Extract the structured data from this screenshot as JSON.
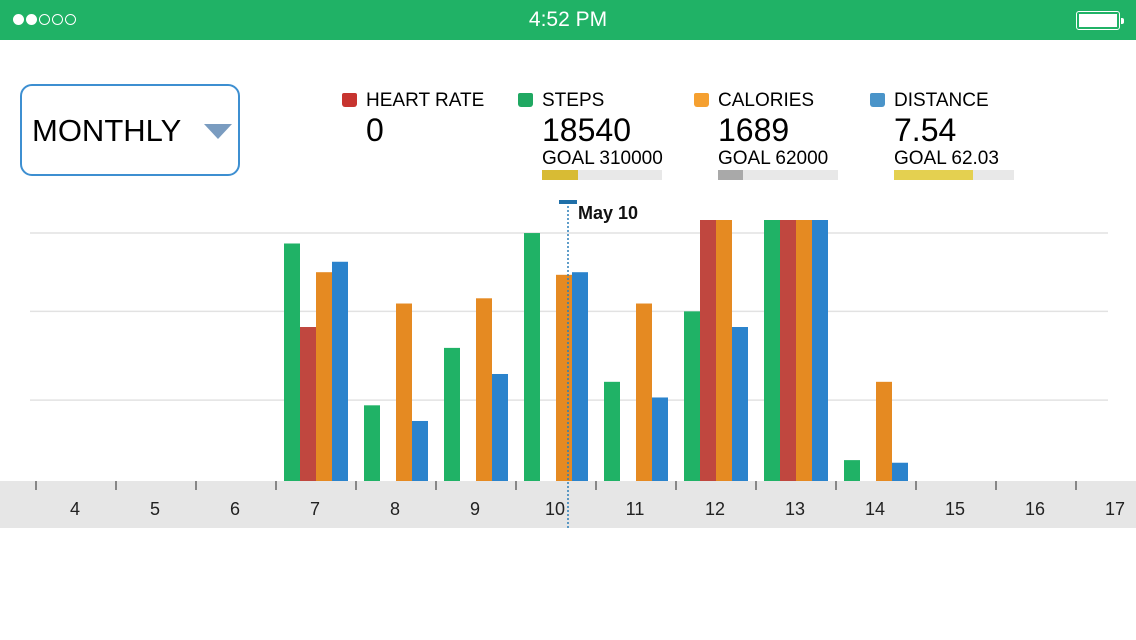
{
  "status_bar": {
    "time": "4:52 PM",
    "signal_filled": 2,
    "signal_total": 5,
    "battery_level": 1.0
  },
  "period_dropdown": {
    "label": "MONTHLY"
  },
  "metrics": [
    {
      "name": "HEART RATE",
      "value": "0",
      "goal": null,
      "progress": null,
      "color": "#c7342f"
    },
    {
      "name": "STEPS",
      "value": "18540",
      "goal": "GOAL 310000",
      "progress": 0.3,
      "progress_color": "#d8bb34",
      "color": "#20a862"
    },
    {
      "name": "CALORIES",
      "value": "1689",
      "goal": "GOAL 62000",
      "progress": 0.21,
      "progress_color": "#a9a9a9",
      "color": "#f5a030"
    },
    {
      "name": "DISTANCE",
      "value": "7.54",
      "goal": "GOAL 62.03",
      "progress": 0.66,
      "progress_color": "#e4d050",
      "color": "#4a94c9"
    }
  ],
  "chart_data": {
    "type": "bar",
    "categories": [
      "4",
      "5",
      "6",
      "7",
      "8",
      "9",
      "10",
      "11",
      "12",
      "13",
      "14",
      "15",
      "16",
      "17"
    ],
    "ylim": [
      0,
      100
    ],
    "grid": true,
    "series": [
      {
        "name": "STEPS",
        "color": "#20b266",
        "values": [
          0,
          0,
          0,
          91,
          29,
          51,
          95,
          38,
          65,
          100,
          8,
          0,
          0,
          0
        ]
      },
      {
        "name": "HEART RATE",
        "color": "#c0473f",
        "values": [
          0,
          0,
          0,
          59,
          0,
          0,
          0,
          0,
          100,
          100,
          0,
          0,
          0,
          0
        ]
      },
      {
        "name": "CALORIES",
        "color": "#e58a22",
        "values": [
          0,
          0,
          0,
          80,
          68,
          70,
          79,
          68,
          100,
          100,
          38,
          0,
          0,
          0
        ]
      },
      {
        "name": "DISTANCE",
        "color": "#2b83cc",
        "values": [
          0,
          0,
          0,
          84,
          23,
          41,
          80,
          32,
          59,
          100,
          7,
          0,
          0,
          0
        ]
      }
    ],
    "gridlines": [
      31,
      65,
      95
    ],
    "cursor": {
      "category": "10",
      "label": "May 10"
    }
  }
}
